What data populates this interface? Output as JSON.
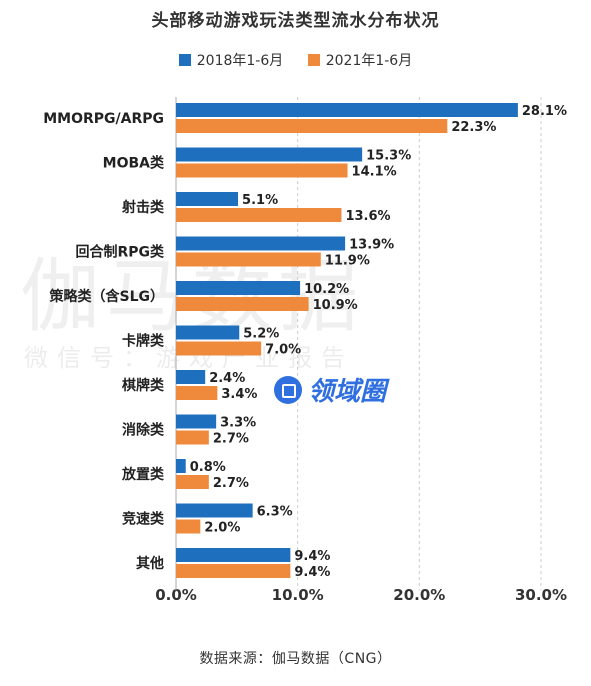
{
  "title": "头部移动游戏玩法类型流水分布状况",
  "source": "数据来源：伽马数据（CNG）",
  "watermark": {
    "main": "伽马数据",
    "sub": "微信号：游戏产业报告"
  },
  "badge": {
    "label": "领域圈"
  },
  "colors": {
    "series1": "#1f6fbf",
    "series2": "#ef8a3c",
    "grid": "#cccccc",
    "axis": "#aaaaaa"
  },
  "chart_data": {
    "type": "bar",
    "orientation": "horizontal",
    "title": "头部移动游戏玩法类型流水分布状况",
    "categories": [
      "MMORPG/ARPG",
      "MOBA类",
      "射击类",
      "回合制RPG类",
      "策略类（含SLG）",
      "卡牌类",
      "棋牌类",
      "消除类",
      "放置类",
      "竞速类",
      "其他"
    ],
    "series": [
      {
        "name": "2018年1-6月",
        "values": [
          28.1,
          15.3,
          5.1,
          13.9,
          10.2,
          5.2,
          2.4,
          3.3,
          0.8,
          6.3,
          9.4
        ],
        "labels": [
          "28.1%",
          "15.3%",
          "5.1%",
          "13.9%",
          "10.2%",
          "5.2%",
          "2.4%",
          "3.3%",
          "0.8%",
          "6.3%",
          "9.4%"
        ]
      },
      {
        "name": "2021年1-6月",
        "values": [
          22.3,
          14.1,
          13.6,
          11.9,
          10.9,
          7.0,
          3.4,
          2.7,
          2.7,
          2.0,
          9.4
        ],
        "labels": [
          "22.3%",
          "14.1%",
          "13.6%",
          "11.9%",
          "10.9%",
          "7.0%",
          "3.4%",
          "2.7%",
          "2.7%",
          "2.0%",
          "9.4%"
        ]
      }
    ],
    "xlim": [
      0,
      30
    ],
    "xticks": [
      "0.0%",
      "10.0%",
      "20.0%",
      "30.0%"
    ],
    "xtick_values": [
      0,
      10,
      20,
      30
    ],
    "grid": true,
    "legend_position": "top"
  }
}
